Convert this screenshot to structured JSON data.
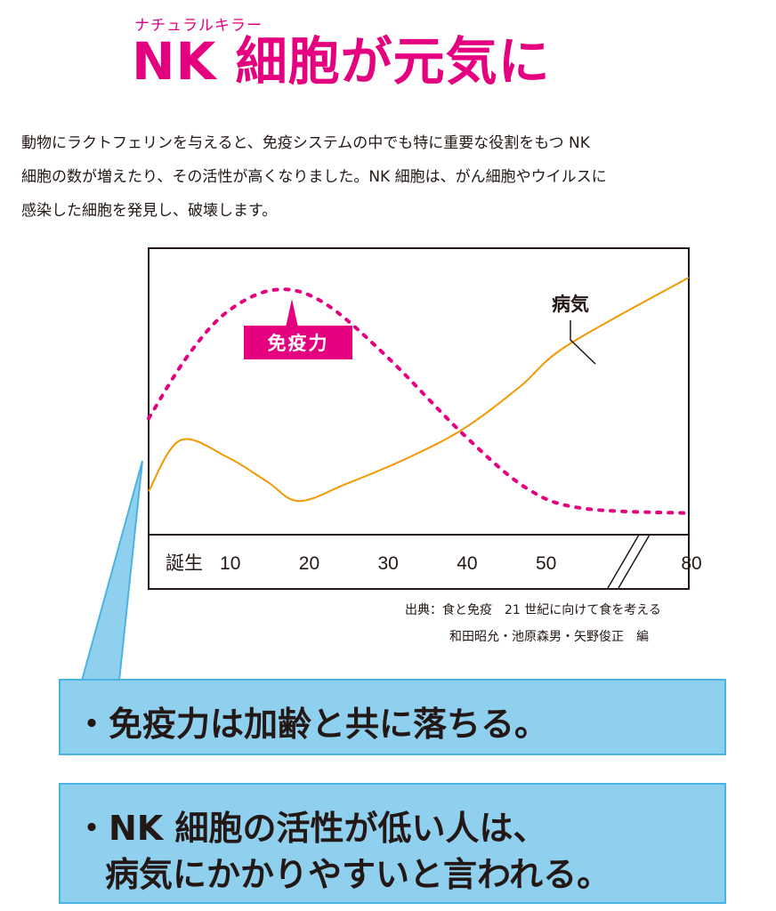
{
  "header": {
    "ruby": "ナチュラルキラー",
    "title": "NK 細胞が元気に"
  },
  "intro": {
    "lines": [
      "動物にラクトフェリンを与えると、免疫システムの中でも特に重要な役割をもつ NK",
      "細胞の数が増えたり、その活性が高くなりました。NK 細胞は、がん細胞やウイルスに",
      "感染した細胞を発見し、破壊します。"
    ]
  },
  "chart_data": {
    "type": "line",
    "x_tick_labels": [
      "誕生",
      "10",
      "20",
      "30",
      "40",
      "50",
      "80"
    ],
    "x_axis_break": "50–80",
    "series": [
      {
        "name": "免疫力",
        "style": "dashed",
        "color": "#e4007f",
        "points": [
          [
            0,
            0.42
          ],
          [
            5,
            0.68
          ],
          [
            10,
            0.86
          ],
          [
            16,
            0.95
          ],
          [
            22,
            0.9
          ],
          [
            30,
            0.68
          ],
          [
            40,
            0.35
          ],
          [
            48,
            0.13
          ],
          [
            55,
            0.05
          ],
          [
            80,
            0.03
          ]
        ]
      },
      {
        "name": "病気",
        "style": "solid",
        "color": "#f39800",
        "points": [
          [
            0,
            0.12
          ],
          [
            4,
            0.33
          ],
          [
            10,
            0.26
          ],
          [
            15,
            0.16
          ],
          [
            19,
            0.08
          ],
          [
            25,
            0.15
          ],
          [
            33,
            0.26
          ],
          [
            40,
            0.38
          ],
          [
            47,
            0.55
          ],
          [
            53,
            0.72
          ],
          [
            80,
            1.0
          ]
        ]
      }
    ],
    "annotations": [
      "免疫力",
      "病気"
    ],
    "y_axis_labels": "none",
    "grid": false
  },
  "source": {
    "line1": "出典：食と免疫　21 世紀に向けて食を考える",
    "line2": "和田昭允・池原森男・矢野俊正　編"
  },
  "callouts": {
    "first": "・免疫力は加齢と共に落ちる。",
    "second_line1": "・NK 細胞の活性が低い人は、",
    "second_line2": "病気にかかりやすいと言われる。"
  },
  "colors": {
    "accent": "#e4007f",
    "disease_line": "#f39800",
    "callout_fill": "#8fd0ef",
    "callout_border": "#4bb3e1"
  }
}
